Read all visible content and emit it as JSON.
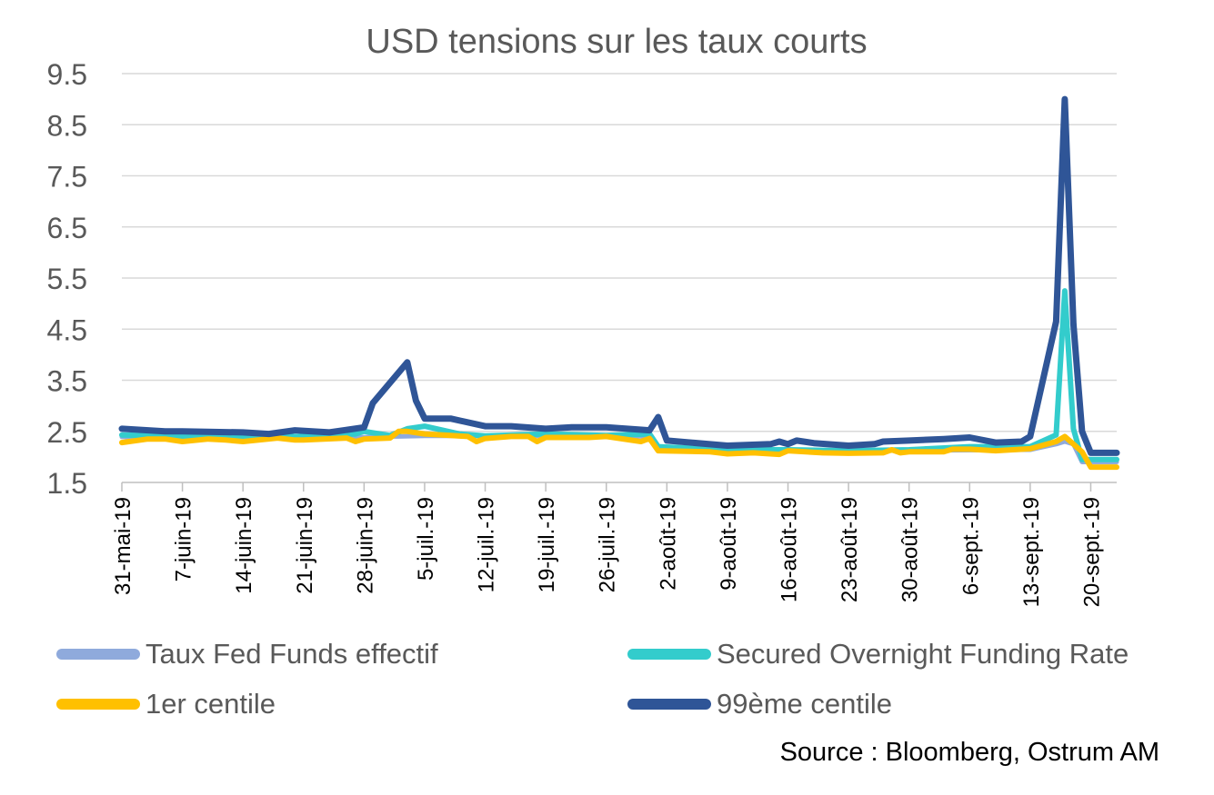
{
  "chart_data": {
    "type": "line",
    "title": "USD tensions sur les taux courts",
    "xlabel": "",
    "ylabel": "",
    "ylim": [
      1.5,
      9.5
    ],
    "y_ticks": [
      "1.5",
      "2.5",
      "3.5",
      "4.5",
      "5.5",
      "6.5",
      "7.5",
      "8.5",
      "9.5"
    ],
    "x_tick_labels": [
      "31-mai-19",
      "7-juin-19",
      "14-juin-19",
      "21-juin-19",
      "28-juin-19",
      "5-juil.-19",
      "12-juil.-19",
      "19-juil.-19",
      "26-juil.-19",
      "2-août-19",
      "9-août-19",
      "16-août-19",
      "23-août-19",
      "30-août-19",
      "6-sept.-19",
      "13-sept.-19",
      "20-sept.-19"
    ],
    "x_start": "2019-05-31",
    "x_end": "2019-09-23",
    "grid": true,
    "legend_position": "bottom",
    "series": [
      {
        "name": "Taux Fed Funds effectif",
        "color": "#8FAADC",
        "points": [
          [
            "2019-05-31",
            2.39
          ],
          [
            "2019-06-14",
            2.38
          ],
          [
            "2019-06-27",
            2.38
          ],
          [
            "2019-07-01",
            2.4
          ],
          [
            "2019-07-02",
            2.4
          ],
          [
            "2019-07-05",
            2.41
          ],
          [
            "2019-07-12",
            2.41
          ],
          [
            "2019-07-26",
            2.41
          ],
          [
            "2019-07-31",
            2.4
          ],
          [
            "2019-08-01",
            2.13
          ],
          [
            "2019-08-15",
            2.12
          ],
          [
            "2019-09-03",
            2.13
          ],
          [
            "2019-09-13",
            2.14
          ],
          [
            "2019-09-16",
            2.25
          ],
          [
            "2019-09-17",
            2.3
          ],
          [
            "2019-09-18",
            2.25
          ],
          [
            "2019-09-19",
            1.9
          ],
          [
            "2019-09-23",
            1.9
          ]
        ]
      },
      {
        "name": "Secured Overnight Funding Rate",
        "color": "#33CCCC",
        "points": [
          [
            "2019-05-31",
            2.43
          ],
          [
            "2019-06-07",
            2.4
          ],
          [
            "2019-06-14",
            2.39
          ],
          [
            "2019-06-21",
            2.4
          ],
          [
            "2019-06-27",
            2.45
          ],
          [
            "2019-06-28",
            2.5
          ],
          [
            "2019-07-01",
            2.42
          ],
          [
            "2019-07-03",
            2.55
          ],
          [
            "2019-07-05",
            2.6
          ],
          [
            "2019-07-09",
            2.45
          ],
          [
            "2019-07-12",
            2.41
          ],
          [
            "2019-07-19",
            2.45
          ],
          [
            "2019-07-26",
            2.42
          ],
          [
            "2019-07-31",
            2.45
          ],
          [
            "2019-08-01",
            2.2
          ],
          [
            "2019-08-09",
            2.14
          ],
          [
            "2019-08-16",
            2.14
          ],
          [
            "2019-08-23",
            2.12
          ],
          [
            "2019-08-30",
            2.14
          ],
          [
            "2019-09-06",
            2.2
          ],
          [
            "2019-09-13",
            2.2
          ],
          [
            "2019-09-16",
            2.43
          ],
          [
            "2019-09-17",
            5.25
          ],
          [
            "2019-09-18",
            2.55
          ],
          [
            "2019-09-19",
            1.95
          ],
          [
            "2019-09-23",
            1.95
          ]
        ]
      },
      {
        "name": "1er centile",
        "color": "#FFC000",
        "points": [
          [
            "2019-05-31",
            2.28
          ],
          [
            "2019-06-03",
            2.35
          ],
          [
            "2019-06-05",
            2.35
          ],
          [
            "2019-06-07",
            2.3
          ],
          [
            "2019-06-10",
            2.35
          ],
          [
            "2019-06-12",
            2.33
          ],
          [
            "2019-06-14",
            2.3
          ],
          [
            "2019-06-18",
            2.37
          ],
          [
            "2019-06-20",
            2.33
          ],
          [
            "2019-06-21",
            2.33
          ],
          [
            "2019-06-26",
            2.37
          ],
          [
            "2019-06-27",
            2.3
          ],
          [
            "2019-06-28",
            2.35
          ],
          [
            "2019-07-01",
            2.37
          ],
          [
            "2019-07-02",
            2.5
          ],
          [
            "2019-07-03",
            2.5
          ],
          [
            "2019-07-05",
            2.45
          ],
          [
            "2019-07-08",
            2.42
          ],
          [
            "2019-07-10",
            2.4
          ],
          [
            "2019-07-11",
            2.3
          ],
          [
            "2019-07-12",
            2.36
          ],
          [
            "2019-07-15",
            2.4
          ],
          [
            "2019-07-17",
            2.4
          ],
          [
            "2019-07-18",
            2.3
          ],
          [
            "2019-07-19",
            2.38
          ],
          [
            "2019-07-24",
            2.38
          ],
          [
            "2019-07-26",
            2.4
          ],
          [
            "2019-07-30",
            2.3
          ],
          [
            "2019-07-31",
            2.36
          ],
          [
            "2019-08-01",
            2.12
          ],
          [
            "2019-08-07",
            2.1
          ],
          [
            "2019-08-09",
            2.06
          ],
          [
            "2019-08-12",
            2.08
          ],
          [
            "2019-08-15",
            2.05
          ],
          [
            "2019-08-16",
            2.12
          ],
          [
            "2019-08-20",
            2.08
          ],
          [
            "2019-08-23",
            2.07
          ],
          [
            "2019-08-27",
            2.08
          ],
          [
            "2019-08-28",
            2.14
          ],
          [
            "2019-08-29",
            2.08
          ],
          [
            "2019-08-30",
            2.1
          ],
          [
            "2019-09-03",
            2.1
          ],
          [
            "2019-09-04",
            2.15
          ],
          [
            "2019-09-06",
            2.15
          ],
          [
            "2019-09-09",
            2.12
          ],
          [
            "2019-09-13",
            2.16
          ],
          [
            "2019-09-16",
            2.3
          ],
          [
            "2019-09-17",
            2.4
          ],
          [
            "2019-09-18",
            2.25
          ],
          [
            "2019-09-19",
            2.1
          ],
          [
            "2019-09-20",
            1.8
          ],
          [
            "2019-09-23",
            1.8
          ]
        ]
      },
      {
        "name": "99ème centile",
        "color": "#2F5597",
        "points": [
          [
            "2019-05-31",
            2.55
          ],
          [
            "2019-06-05",
            2.5
          ],
          [
            "2019-06-07",
            2.5
          ],
          [
            "2019-06-14",
            2.48
          ],
          [
            "2019-06-17",
            2.45
          ],
          [
            "2019-06-20",
            2.52
          ],
          [
            "2019-06-24",
            2.48
          ],
          [
            "2019-06-28",
            2.58
          ],
          [
            "2019-06-29",
            3.05
          ],
          [
            "2019-07-03",
            3.85
          ],
          [
            "2019-07-04",
            3.1
          ],
          [
            "2019-07-05",
            2.75
          ],
          [
            "2019-07-08",
            2.75
          ],
          [
            "2019-07-12",
            2.6
          ],
          [
            "2019-07-15",
            2.6
          ],
          [
            "2019-07-19",
            2.55
          ],
          [
            "2019-07-22",
            2.58
          ],
          [
            "2019-07-26",
            2.58
          ],
          [
            "2019-07-31",
            2.52
          ],
          [
            "2019-08-01",
            2.78
          ],
          [
            "2019-08-02",
            2.32
          ],
          [
            "2019-08-09",
            2.22
          ],
          [
            "2019-08-14",
            2.25
          ],
          [
            "2019-08-15",
            2.3
          ],
          [
            "2019-08-16",
            2.25
          ],
          [
            "2019-08-17",
            2.32
          ],
          [
            "2019-08-19",
            2.27
          ],
          [
            "2019-08-23",
            2.22
          ],
          [
            "2019-08-26",
            2.25
          ],
          [
            "2019-08-27",
            2.3
          ],
          [
            "2019-08-30",
            2.32
          ],
          [
            "2019-09-03",
            2.35
          ],
          [
            "2019-09-06",
            2.38
          ],
          [
            "2019-09-09",
            2.28
          ],
          [
            "2019-09-12",
            2.3
          ],
          [
            "2019-09-13",
            2.4
          ],
          [
            "2019-09-16",
            4.65
          ],
          [
            "2019-09-17",
            9.0
          ],
          [
            "2019-09-18",
            4.6
          ],
          [
            "2019-09-19",
            2.5
          ],
          [
            "2019-09-20",
            2.08
          ],
          [
            "2019-09-23",
            2.08
          ]
        ]
      }
    ]
  },
  "source": "Source : Bloomberg, Ostrum AM"
}
